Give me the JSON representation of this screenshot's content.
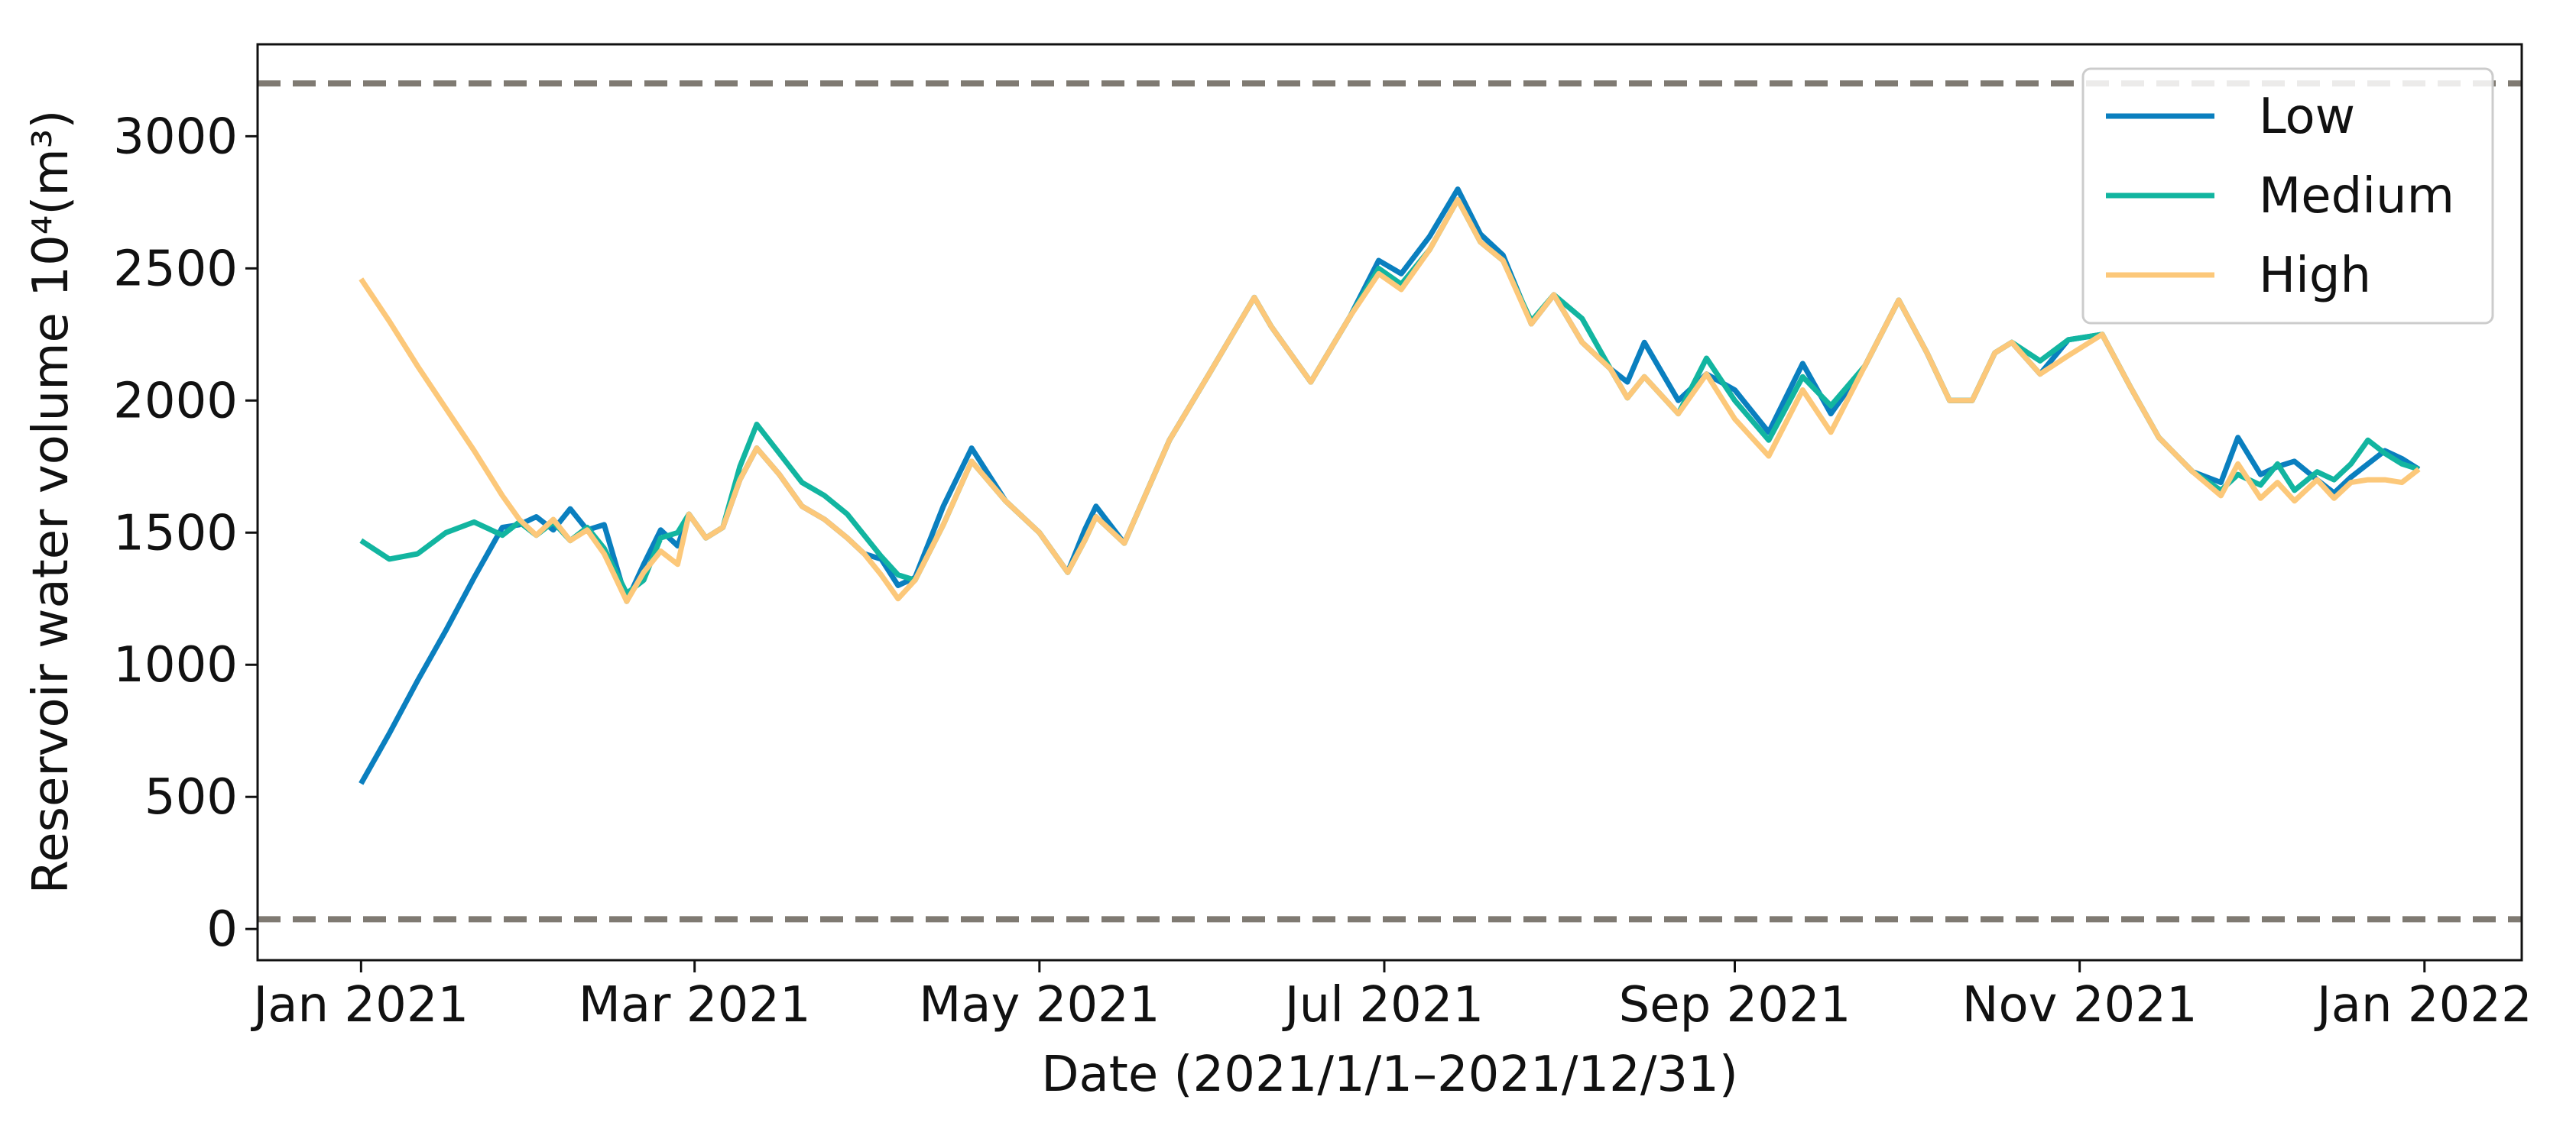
{
  "chart_data": {
    "type": "line",
    "x_label": "Date (2021/1/1–2021/12/31)",
    "y_label": "Reservoir water volume 10⁴(m³)",
    "x": [
      0,
      5,
      10,
      15,
      20,
      25,
      28,
      31,
      34,
      37,
      40,
      43,
      47,
      50,
      53,
      56,
      58,
      61,
      64,
      67,
      70,
      74,
      78,
      82,
      86,
      89,
      92,
      95,
      98,
      103,
      108,
      114,
      120,
      125,
      128,
      130,
      135,
      143,
      150,
      158,
      161,
      168,
      175,
      180,
      184,
      189,
      194,
      198,
      202,
      207,
      211,
      216,
      221,
      224,
      227,
      233,
      238,
      243,
      249,
      255,
      260,
      266,
      272,
      277,
      281,
      285,
      289,
      292,
      297,
      302,
      308,
      313,
      318,
      324,
      329,
      332,
      336,
      339,
      342,
      346,
      349,
      352,
      355,
      358,
      361,
      364
    ],
    "series": [
      {
        "name": "Low",
        "color": "#0a7fbf",
        "values": [
          550,
          740,
          940,
          1130,
          1330,
          1520,
          1530,
          1560,
          1510,
          1590,
          1510,
          1530,
          1240,
          1380,
          1510,
          1450,
          1570,
          1480,
          1520,
          1700,
          1820,
          1720,
          1600,
          1550,
          1480,
          1420,
          1400,
          1300,
          1330,
          1600,
          1820,
          1620,
          1500,
          1350,
          1510,
          1600,
          1460,
          1850,
          2100,
          2390,
          2280,
          2070,
          2320,
          2530,
          2480,
          2620,
          2800,
          2630,
          2550,
          2290,
          2400,
          2220,
          2120,
          2070,
          2220,
          2000,
          2100,
          2040,
          1880,
          2140,
          1950,
          2130,
          2380,
          2180,
          2000,
          2000,
          2180,
          2220,
          2100,
          2230,
          2250,
          2050,
          1860,
          1730,
          1690,
          1860,
          1720,
          1750,
          1770,
          1700,
          1650,
          1710,
          1760,
          1810,
          1780,
          1740
        ]
      },
      {
        "name": "Medium",
        "color": "#12b5a0",
        "values": [
          1470,
          1400,
          1420,
          1500,
          1540,
          1490,
          1540,
          1490,
          1540,
          1470,
          1520,
          1440,
          1270,
          1320,
          1480,
          1500,
          1570,
          1480,
          1520,
          1750,
          1910,
          1800,
          1690,
          1640,
          1570,
          1490,
          1410,
          1340,
          1320,
          1530,
          1770,
          1620,
          1500,
          1350,
          1470,
          1560,
          1460,
          1850,
          2100,
          2390,
          2280,
          2070,
          2320,
          2500,
          2440,
          2570,
          2760,
          2600,
          2530,
          2300,
          2400,
          2310,
          2120,
          2010,
          2090,
          1950,
          2160,
          2000,
          1850,
          2090,
          1980,
          2130,
          2380,
          2180,
          2000,
          2000,
          2180,
          2220,
          2150,
          2230,
          2250,
          2050,
          1860,
          1730,
          1660,
          1720,
          1680,
          1760,
          1660,
          1730,
          1700,
          1760,
          1850,
          1800,
          1760,
          1740
        ]
      },
      {
        "name": "High",
        "color": "#fcc87a",
        "values": [
          2460,
          2300,
          2130,
          1970,
          1810,
          1640,
          1550,
          1490,
          1550,
          1470,
          1510,
          1420,
          1240,
          1350,
          1430,
          1380,
          1570,
          1480,
          1520,
          1700,
          1820,
          1720,
          1600,
          1550,
          1480,
          1420,
          1340,
          1250,
          1320,
          1530,
          1770,
          1620,
          1500,
          1350,
          1470,
          1560,
          1460,
          1850,
          2100,
          2390,
          2280,
          2070,
          2320,
          2480,
          2420,
          2570,
          2760,
          2600,
          2530,
          2290,
          2400,
          2220,
          2120,
          2010,
          2090,
          1950,
          2100,
          1930,
          1790,
          2040,
          1880,
          2130,
          2380,
          2180,
          2000,
          2000,
          2180,
          2220,
          2100,
          2170,
          2250,
          2050,
          1860,
          1730,
          1640,
          1760,
          1630,
          1690,
          1620,
          1700,
          1630,
          1690,
          1700,
          1700,
          1690,
          1740
        ]
      }
    ],
    "xlim": [
      -18.3,
      382.2
    ],
    "xticks": [
      {
        "value": 0,
        "label": "Jan 2021"
      },
      {
        "value": 59,
        "label": "Mar 2021"
      },
      {
        "value": 120,
        "label": "May 2021"
      },
      {
        "value": 181,
        "label": "Jul 2021"
      },
      {
        "value": 243,
        "label": "Sep 2021"
      },
      {
        "value": 304,
        "label": "Nov 2021"
      },
      {
        "value": 365,
        "label": "Jan 2022"
      }
    ],
    "ylim": [
      -118,
      3348
    ],
    "yticks": [
      0,
      500,
      1000,
      1500,
      2000,
      2500,
      3000
    ],
    "hlines": [
      3200,
      37
    ],
    "hline_color": "#7f7a72",
    "grid": false,
    "legend": "upper right"
  }
}
